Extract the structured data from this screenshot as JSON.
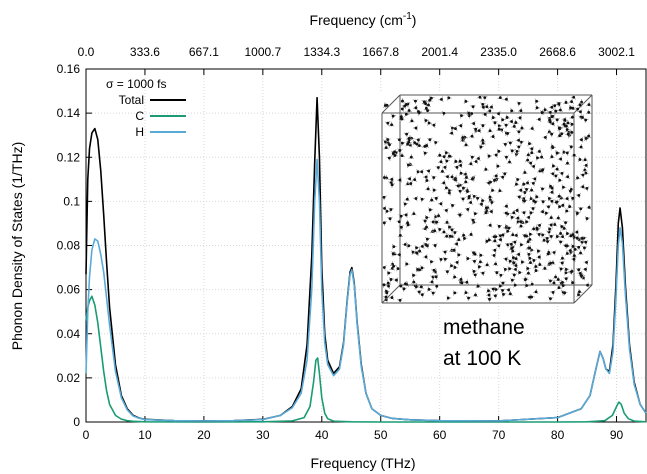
{
  "chart_data": {
    "type": "line",
    "title": "",
    "xlabel": "Frequency (THz)",
    "ylabel": "Phonon Density of States (1/THz)",
    "top_xlabel_main": "Frequency (cm",
    "top_xlabel_sup": "-1",
    "top_xlabel_end": ")",
    "xlim": [
      0,
      95
    ],
    "ylim": [
      0,
      0.16
    ],
    "x_ticks": [
      0,
      10,
      20,
      30,
      40,
      50,
      60,
      70,
      80,
      90
    ],
    "x_tick_labels": [
      "0",
      "10",
      "20",
      "30",
      "40",
      "50",
      "60",
      "70",
      "80",
      "90"
    ],
    "y_ticks": [
      0,
      0.02,
      0.04,
      0.06,
      0.08,
      0.1,
      0.12,
      0.14,
      0.16
    ],
    "y_tick_labels": [
      "0",
      "0.02",
      "0.04",
      "0.06",
      "0.08",
      "0.1",
      "0.12",
      "0.14",
      "0.16"
    ],
    "top_ticks_thz": [
      0,
      10,
      20,
      30,
      40,
      50,
      60,
      70,
      80,
      90
    ],
    "top_tick_labels": [
      "0.0",
      "333.6",
      "667.1",
      "1000.7",
      "1334.3",
      "1667.8",
      "2001.4",
      "2335.0",
      "2668.6",
      "3002.1"
    ],
    "grid": true,
    "legend_title": "σ = 1000 fs",
    "legend_position": "top-left",
    "annotation_lines": [
      "methane",
      "at 100 K"
    ],
    "series": [
      {
        "name": "Total",
        "color": "#000000",
        "x": [
          0,
          0.3,
          0.6,
          1,
          1.5,
          2,
          2.5,
          3,
          3.5,
          4,
          5,
          6,
          7,
          8,
          9,
          10,
          15,
          20,
          25,
          30,
          33,
          35,
          36.5,
          37.5,
          38.3,
          38.8,
          39.2,
          39.6,
          40,
          40.5,
          41,
          42,
          43,
          43.7,
          44.3,
          44.8,
          45.1,
          45.5,
          46,
          46.7,
          47.5,
          48.5,
          50,
          52,
          55,
          60,
          70,
          80,
          84,
          85.5,
          86.5,
          87.2,
          87.7,
          88.2,
          88.8,
          89.4,
          89.9,
          90.3,
          90.6,
          91,
          91.5,
          92.2,
          93,
          94,
          95
        ],
        "y": [
          0.067,
          0.11,
          0.124,
          0.131,
          0.133,
          0.128,
          0.114,
          0.094,
          0.072,
          0.052,
          0.026,
          0.012,
          0.006,
          0.003,
          0.0018,
          0.0012,
          0.0006,
          0.0005,
          0.0006,
          0.0012,
          0.003,
          0.007,
          0.015,
          0.035,
          0.075,
          0.118,
          0.147,
          0.12,
          0.07,
          0.04,
          0.028,
          0.022,
          0.025,
          0.036,
          0.055,
          0.068,
          0.07,
          0.063,
          0.045,
          0.026,
          0.013,
          0.006,
          0.003,
          0.0016,
          0.001,
          0.0006,
          0.0005,
          0.002,
          0.006,
          0.012,
          0.024,
          0.032,
          0.029,
          0.024,
          0.023,
          0.035,
          0.062,
          0.09,
          0.097,
          0.088,
          0.062,
          0.035,
          0.018,
          0.008,
          0.004
        ]
      },
      {
        "name": "C",
        "color": "#1a9b73",
        "x": [
          0,
          0.3,
          0.6,
          1,
          1.5,
          2,
          2.5,
          3,
          3.5,
          4,
          5,
          6,
          7,
          8,
          10,
          20,
          30,
          35,
          37,
          38,
          38.6,
          39,
          39.3,
          39.6,
          40,
          40.5,
          41,
          42,
          45,
          50,
          60,
          70,
          80,
          85,
          88,
          89.3,
          90,
          90.4,
          90.8,
          91.3,
          92,
          93,
          95
        ],
        "y": [
          0.046,
          0.052,
          0.055,
          0.057,
          0.053,
          0.045,
          0.034,
          0.023,
          0.014,
          0.008,
          0.003,
          0.0013,
          0.0006,
          0.0003,
          0.0001,
          0.0,
          0.0001,
          0.0005,
          0.002,
          0.007,
          0.018,
          0.028,
          0.029,
          0.022,
          0.011,
          0.004,
          0.0015,
          0.0004,
          0.0001,
          0.0,
          0.0,
          0.0,
          0.0,
          0.0001,
          0.0006,
          0.003,
          0.007,
          0.009,
          0.008,
          0.004,
          0.0015,
          0.0004,
          0.0001
        ]
      },
      {
        "name": "H",
        "color": "#5aaad8",
        "x": [
          0,
          0.3,
          0.6,
          1,
          1.5,
          2,
          2.5,
          3,
          3.5,
          4,
          5,
          6,
          7,
          8,
          9,
          10,
          15,
          20,
          25,
          30,
          33,
          35,
          36.5,
          37.5,
          38.3,
          38.8,
          39.2,
          39.6,
          40,
          40.5,
          41,
          42,
          43,
          43.7,
          44.3,
          44.8,
          45.1,
          45.5,
          46,
          46.7,
          47.5,
          48.5,
          50,
          52,
          55,
          60,
          70,
          80,
          84,
          85.5,
          86.5,
          87.2,
          87.7,
          88.2,
          88.8,
          89.4,
          89.9,
          90.3,
          90.6,
          91,
          91.5,
          92.2,
          93,
          94,
          95
        ],
        "y": [
          0.022,
          0.05,
          0.066,
          0.078,
          0.083,
          0.082,
          0.076,
          0.068,
          0.056,
          0.044,
          0.023,
          0.011,
          0.0055,
          0.0027,
          0.0017,
          0.0011,
          0.0006,
          0.0005,
          0.0006,
          0.0011,
          0.003,
          0.0065,
          0.013,
          0.028,
          0.06,
          0.1,
          0.119,
          0.1,
          0.06,
          0.036,
          0.026,
          0.021,
          0.024,
          0.035,
          0.054,
          0.067,
          0.069,
          0.062,
          0.044,
          0.025,
          0.013,
          0.006,
          0.003,
          0.0016,
          0.001,
          0.0006,
          0.0005,
          0.002,
          0.006,
          0.012,
          0.024,
          0.032,
          0.029,
          0.024,
          0.022,
          0.032,
          0.056,
          0.08,
          0.088,
          0.081,
          0.058,
          0.033,
          0.017,
          0.008,
          0.004
        ]
      }
    ]
  }
}
